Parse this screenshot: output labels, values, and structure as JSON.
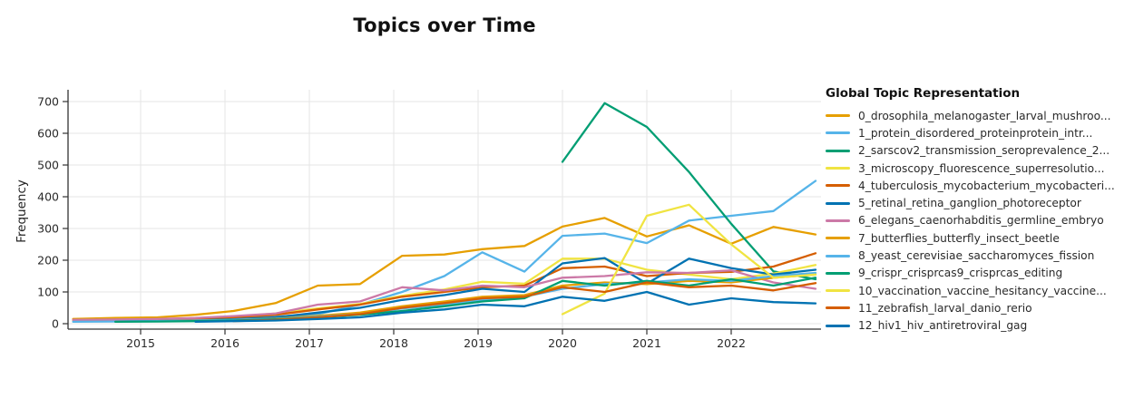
{
  "chart_data": {
    "type": "line",
    "title": "Topics over Time",
    "ylabel": "Frequency",
    "xlabel": "",
    "legend_title": "Global Topic Representation",
    "legend_position": "right",
    "grid": true,
    "ylim": [
      0,
      735
    ],
    "xlim": [
      2014.1,
      2023.05
    ],
    "yticks": [
      0,
      100,
      200,
      300,
      400,
      500,
      600,
      700
    ],
    "xticks": [
      2015,
      2016,
      2017,
      2018,
      2019,
      2020,
      2021,
      2022
    ],
    "x": [
      2014.2,
      2014.7,
      2015.2,
      2015.65,
      2016.1,
      2016.6,
      2017.1,
      2017.6,
      2018.1,
      2018.6,
      2019.05,
      2019.55,
      2020.0,
      2020.5,
      2021.0,
      2021.5,
      2022.0,
      2022.5,
      2023.0
    ],
    "series": [
      {
        "id": 0,
        "label": "0_drosophila_melanogaster_larval_mushroo...",
        "color": "#E69F00",
        "values": [
          15,
          18,
          20,
          28,
          40,
          65,
          120,
          125,
          214,
          218,
          235,
          245,
          306,
          333,
          275,
          310,
          252,
          305,
          281
        ]
      },
      {
        "id": 1,
        "label": "1_protein_disordered_proteinprotein_intr...",
        "color": "#56B4E9",
        "values": [
          8,
          8,
          10,
          12,
          15,
          22,
          30,
          60,
          100,
          150,
          225,
          164,
          277,
          284,
          254,
          325,
          340,
          355,
          450
        ]
      },
      {
        "id": 2,
        "label": "2_sarscov2_transmission_seroprevalence_2...",
        "color": "#009E73",
        "values": [
          null,
          null,
          null,
          null,
          null,
          null,
          null,
          null,
          null,
          null,
          null,
          null,
          510,
          695,
          620,
          478,
          315,
          165,
          140
        ]
      },
      {
        "id": 3,
        "label": "3_microscopy_fluorescence_superresolutio...",
        "color": "#F0E442",
        "values": [
          10,
          12,
          14,
          16,
          22,
          32,
          48,
          62,
          88,
          108,
          132,
          126,
          205,
          205,
          170,
          155,
          140,
          158,
          185
        ]
      },
      {
        "id": 4,
        "label": "4_tuberculosis_mycobacterium_mycobacteri...",
        "color": "#D55E00",
        "values": [
          12,
          12,
          14,
          16,
          20,
          28,
          45,
          60,
          85,
          100,
          115,
          120,
          175,
          180,
          150,
          160,
          163,
          180,
          222
        ]
      },
      {
        "id": 5,
        "label": "5_retinal_retina_ganglion_photoreceptor",
        "color": "#0072B2",
        "values": [
          null,
          8,
          9,
          10,
          14,
          20,
          35,
          50,
          75,
          90,
          110,
          100,
          190,
          207,
          126,
          205,
          175,
          155,
          170
        ]
      },
      {
        "id": 6,
        "label": "6_elegans_caenorhabditis_germline_embryo",
        "color": "#CC79A7",
        "values": [
          12,
          13,
          15,
          18,
          24,
          32,
          60,
          70,
          115,
          105,
          120,
          115,
          145,
          150,
          162,
          160,
          168,
          130,
          110
        ]
      },
      {
        "id": 7,
        "label": "7_butterflies_butterfly_insect_beetle",
        "color": "#E69F00",
        "values": [
          null,
          null,
          8,
          10,
          12,
          16,
          25,
          35,
          55,
          70,
          85,
          90,
          120,
          130,
          125,
          135,
          130,
          145,
          155
        ]
      },
      {
        "id": 8,
        "label": "8_yeast_cerevisiae_saccharomyces_fission",
        "color": "#56B4E9",
        "values": [
          6,
          7,
          8,
          10,
          12,
          15,
          22,
          30,
          48,
          60,
          75,
          85,
          110,
          125,
          130,
          140,
          135,
          150,
          160
        ]
      },
      {
        "id": 9,
        "label": "9_crispr_crisprcas9_crisprcas_editing",
        "color": "#009E73",
        "values": [
          null,
          6,
          7,
          8,
          10,
          14,
          20,
          28,
          40,
          55,
          70,
          80,
          135,
          120,
          135,
          120,
          140,
          120,
          145
        ]
      },
      {
        "id": 10,
        "label": "10_vaccination_vaccine_hesitancy_vaccine...",
        "color": "#F0E442",
        "values": [
          null,
          null,
          null,
          null,
          null,
          null,
          null,
          null,
          null,
          null,
          null,
          null,
          30,
          95,
          340,
          375,
          250,
          145,
          155
        ]
      },
      {
        "id": 11,
        "label": "11_zebrafish_larval_danio_rerio",
        "color": "#D55E00",
        "values": [
          null,
          null,
          null,
          null,
          8,
          12,
          20,
          30,
          50,
          65,
          80,
          85,
          115,
          100,
          130,
          115,
          120,
          105,
          128
        ]
      },
      {
        "id": 12,
        "label": "12_hiv1_hiv_antiretroviral_gag",
        "color": "#0072B2",
        "values": [
          null,
          null,
          null,
          6,
          8,
          10,
          15,
          20,
          35,
          45,
          60,
          55,
          85,
          72,
          100,
          60,
          80,
          68,
          64
        ]
      }
    ],
    "style": {
      "grid_color": "#e5e5e5",
      "axis_color": "#333333",
      "tick_label_color": "#2a2a2a",
      "line_width": 2.3
    }
  }
}
